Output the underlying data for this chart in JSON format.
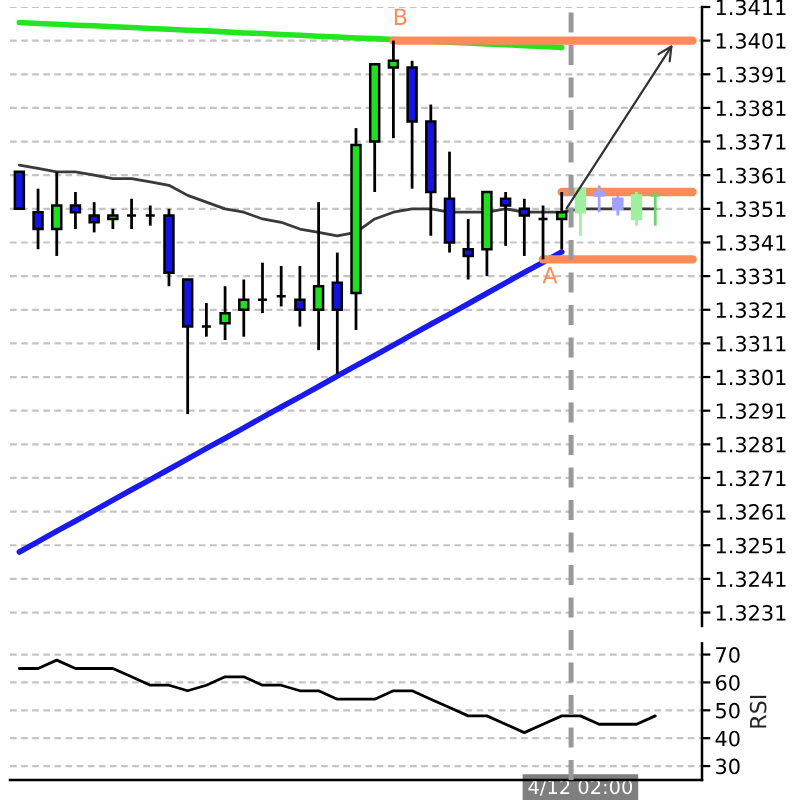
{
  "chart_data": [
    {
      "type": "candlestick",
      "categories": [
        null,
        null,
        null,
        null,
        null,
        null,
        null,
        null,
        null,
        null,
        null,
        null,
        null,
        null,
        null,
        null,
        null,
        null,
        null,
        null,
        null,
        null,
        null,
        null,
        null,
        null,
        null,
        null,
        null,
        null,
        null,
        null,
        null,
        null,
        null,
        null,
        null
      ],
      "series": [
        {
          "type": "candlestick",
          "color": "#000000",
          "colors": [
            "#1414e0",
            "#1414e0",
            "#1fe01f",
            "#1414e0",
            "#1414e0",
            "#1fe01f",
            "#000000",
            "#000000",
            "#1414e0",
            "#1414e0",
            "#000000",
            "#1fe01f",
            "#1fe01f",
            "#000000",
            "#000000",
            "#1414e0",
            "#1fe01f",
            "#1414e0",
            "#1fe01f",
            "#1fe01f",
            "#1fe01f",
            "#1414e0",
            "#1414e0",
            "#1414e0",
            "#1414e0",
            "#1fe01f",
            "#1414e0",
            "#1414e0",
            "#000000",
            "#1fe01f",
            null,
            null,
            null,
            null,
            null,
            null,
            null
          ],
          "ohlc": [
            [
              1.3362,
              1.3362,
              1.3351,
              1.3351
            ],
            [
              1.335,
              1.3357,
              1.3339,
              1.3345
            ],
            [
              1.3345,
              1.3362,
              1.3337,
              1.3352
            ],
            [
              1.3352,
              1.3356,
              1.3345,
              1.335
            ],
            [
              1.3349,
              1.3353,
              1.3344,
              1.3347
            ],
            [
              1.3348,
              1.3351,
              1.3345,
              1.3349
            ],
            [
              1.3349,
              1.3354,
              1.3345,
              1.3349
            ],
            [
              1.3349,
              1.3352,
              1.3346,
              1.3349
            ],
            [
              1.3349,
              1.3351,
              1.3328,
              1.3332
            ],
            [
              1.333,
              1.333,
              1.329,
              1.3316
            ],
            [
              1.3316,
              1.3323,
              1.3313,
              1.3316
            ],
            [
              1.3317,
              1.3328,
              1.3312,
              1.332
            ],
            [
              1.3321,
              1.333,
              1.3313,
              1.3324
            ],
            [
              1.3324,
              1.3335,
              1.332,
              1.3324
            ],
            [
              1.3325,
              1.3334,
              1.3322,
              1.3325
            ],
            [
              1.3324,
              1.3334,
              1.3316,
              1.3321
            ],
            [
              1.3321,
              1.3353,
              1.3309,
              1.3328
            ],
            [
              1.3329,
              1.3338,
              1.3302,
              1.3321
            ],
            [
              1.3326,
              1.3375,
              1.3315,
              1.337
            ],
            [
              1.3371,
              1.3394,
              1.3356,
              1.3394
            ],
            [
              1.3393,
              1.3401,
              1.3372,
              1.3395
            ],
            [
              1.3393,
              1.3395,
              1.3357,
              1.3377
            ],
            [
              1.3377,
              1.3382,
              1.3343,
              1.3356
            ],
            [
              1.3354,
              1.3368,
              1.3338,
              1.3341
            ],
            [
              1.3339,
              1.3348,
              1.333,
              1.3337
            ],
            [
              1.3339,
              1.3356,
              1.3331,
              1.3356
            ],
            [
              1.3354,
              1.3356,
              1.334,
              1.3352
            ],
            [
              1.3351,
              1.3354,
              1.3337,
              1.3349
            ],
            [
              1.3348,
              1.3352,
              1.3336,
              1.3348
            ],
            [
              1.3348,
              1.3356,
              1.3339,
              1.335
            ],
            null,
            null,
            null,
            null,
            null,
            null,
            null
          ]
        },
        {
          "type": "candlestick",
          "colors": [
            null,
            null,
            null,
            null,
            null,
            null,
            null,
            null,
            null,
            null,
            null,
            null,
            null,
            null,
            null,
            null,
            null,
            null,
            null,
            null,
            null,
            null,
            null,
            null,
            null,
            null,
            null,
            null,
            null,
            null,
            "#a0f0a0",
            "#a0a0ff",
            "#a0a0ff",
            "#a0f0a0",
            "#6cd46c",
            null,
            null
          ],
          "ohlc": [
            null,
            null,
            null,
            null,
            null,
            null,
            null,
            null,
            null,
            null,
            null,
            null,
            null,
            null,
            null,
            null,
            null,
            null,
            null,
            null,
            null,
            null,
            null,
            null,
            null,
            null,
            null,
            null,
            null,
            null,
            [
              1.335,
              1.3357,
              1.3343,
              1.3357
            ],
            [
              1.3356,
              1.3358,
              1.335,
              1.3355
            ],
            [
              1.3354,
              1.3355,
              1.3349,
              1.3351
            ],
            [
              1.3348,
              1.3356,
              1.3346,
              1.3355
            ],
            [
              1.3355,
              1.3355,
              1.3346,
              1.3355
            ],
            null,
            null
          ]
        },
        {
          "type": "line",
          "color": "#3a3a3a",
          "values": [
            1.3364,
            1.3363,
            1.3362,
            1.3362,
            1.3361,
            1.336,
            1.336,
            1.3359,
            1.3358,
            1.3355,
            1.3353,
            1.3351,
            1.335,
            1.3348,
            1.3347,
            1.3345,
            1.3344,
            1.3343,
            1.3344,
            1.3348,
            1.335,
            1.3351,
            1.3351,
            1.335,
            1.335,
            1.335,
            1.3351,
            1.335,
            1.335,
            1.335,
            1.3351,
            1.3351,
            1.3351,
            1.3351,
            1.3351,
            null,
            null
          ]
        },
        {
          "type": "line",
          "color": "#22e622",
          "values": [
            1.34064,
            1.34061,
            1.34059,
            1.34056,
            1.34054,
            1.34051,
            1.34049,
            1.34046,
            1.34044,
            1.34041,
            1.34039,
            1.34036,
            1.34033,
            1.34031,
            1.34028,
            1.34026,
            1.34023,
            1.34021,
            1.34018,
            1.34016,
            1.34013,
            1.3401,
            1.34008,
            1.34005,
            1.34003,
            1.34,
            1.33998,
            1.33995,
            1.33993,
            1.3399,
            null,
            null,
            null,
            null,
            null,
            null,
            null
          ]
        },
        {
          "type": "line",
          "color": "#1a1aee",
          "values": [
            1.3249,
            1.32521,
            1.32552,
            1.32582,
            1.32613,
            1.32644,
            1.32675,
            1.32705,
            1.32736,
            1.32767,
            1.32798,
            1.32828,
            1.32859,
            1.3289,
            1.32921,
            1.32951,
            1.32982,
            1.33013,
            1.33044,
            1.33074,
            1.33105,
            1.33136,
            1.33167,
            1.33197,
            1.33228,
            1.33259,
            1.3329,
            1.33321,
            1.33351,
            1.33382,
            null,
            null,
            null,
            null,
            null,
            null,
            null
          ]
        },
        {
          "type": "line",
          "color": "#fb8c5a",
          "values": [
            null,
            null,
            null,
            null,
            null,
            null,
            null,
            null,
            null,
            null,
            null,
            null,
            null,
            null,
            null,
            null,
            null,
            null,
            null,
            null,
            1.3401,
            1.3401,
            1.3401,
            1.3401,
            1.3401,
            1.3401,
            1.3401,
            1.3401,
            1.3401,
            1.3401,
            1.3401,
            1.3401,
            1.3401,
            1.3401,
            1.3401,
            1.3401,
            1.3401
          ],
          "value_labels": [
            null,
            null,
            null,
            null,
            null,
            null,
            null,
            null,
            null,
            null,
            null,
            null,
            null,
            null,
            null,
            null,
            null,
            null,
            null,
            null,
            "B",
            null,
            null,
            null,
            null,
            null,
            null,
            null,
            null,
            null,
            null,
            null,
            null,
            null,
            null,
            null,
            null
          ]
        },
        {
          "type": "line",
          "color": "#fb8c5a",
          "values": [
            null,
            null,
            null,
            null,
            null,
            null,
            null,
            null,
            null,
            null,
            null,
            null,
            null,
            null,
            null,
            null,
            null,
            null,
            null,
            null,
            null,
            null,
            null,
            null,
            null,
            null,
            null,
            null,
            null,
            1.3356,
            1.3356,
            1.3356,
            1.3356,
            1.3356,
            1.3356,
            1.3356,
            1.3356
          ]
        },
        {
          "type": "line",
          "color": "#fb8c5a",
          "values": [
            null,
            null,
            null,
            null,
            null,
            null,
            null,
            null,
            null,
            null,
            null,
            null,
            null,
            null,
            null,
            null,
            null,
            null,
            null,
            null,
            null,
            null,
            null,
            null,
            null,
            null,
            null,
            null,
            1.3336,
            1.3336,
            1.3336,
            1.3336,
            1.3336,
            1.3336,
            1.3336,
            1.3336,
            1.3336
          ],
          "value_labels": [
            null,
            null,
            null,
            null,
            null,
            null,
            null,
            null,
            null,
            null,
            null,
            null,
            null,
            null,
            null,
            null,
            null,
            null,
            null,
            null,
            null,
            null,
            null,
            null,
            null,
            null,
            null,
            null,
            "A",
            null,
            null,
            null,
            null,
            null,
            null,
            null,
            null
          ]
        }
      ],
      "ylim": [
        1.3227,
        1.3411
      ],
      "yticks": [
        1.3231,
        1.3241,
        1.3251,
        1.3261,
        1.3271,
        1.3281,
        1.3291,
        1.3301,
        1.3311,
        1.3321,
        1.3331,
        1.3341,
        1.3351,
        1.3361,
        1.3371,
        1.3381,
        1.3391,
        1.3401,
        1.3411
      ],
      "grid": "y",
      "tick_labels": "y"
    },
    {
      "type": "line",
      "categories": [
        null,
        null,
        null,
        null,
        null,
        null,
        null,
        null,
        null,
        null,
        null,
        null,
        null,
        null,
        null,
        null,
        null,
        null,
        null,
        null,
        null,
        null,
        null,
        null,
        null,
        null,
        null,
        null,
        null,
        null,
        "4/12 02:00",
        null,
        null,
        null,
        null,
        null,
        null
      ],
      "series": [
        {
          "color": "#000000",
          "values": [
            65,
            65,
            68,
            65,
            65,
            65,
            62,
            59,
            59,
            57,
            59,
            62,
            62,
            59,
            59,
            57,
            57,
            54,
            54,
            54,
            57,
            57,
            54,
            51,
            48,
            48,
            45,
            42,
            45,
            48,
            48,
            45,
            45,
            45,
            48,
            null,
            null
          ]
        }
      ],
      "ylim": [
        25,
        74
      ],
      "yticks": [
        30,
        40,
        50,
        60,
        70
      ],
      "ylabel": "RSI",
      "grid": "y",
      "ref_lines": [
        {
          "axis": "x",
          "value": "4/12 02:00",
          "color": "#999999",
          "line_style": "dashed"
        }
      ]
    }
  ]
}
